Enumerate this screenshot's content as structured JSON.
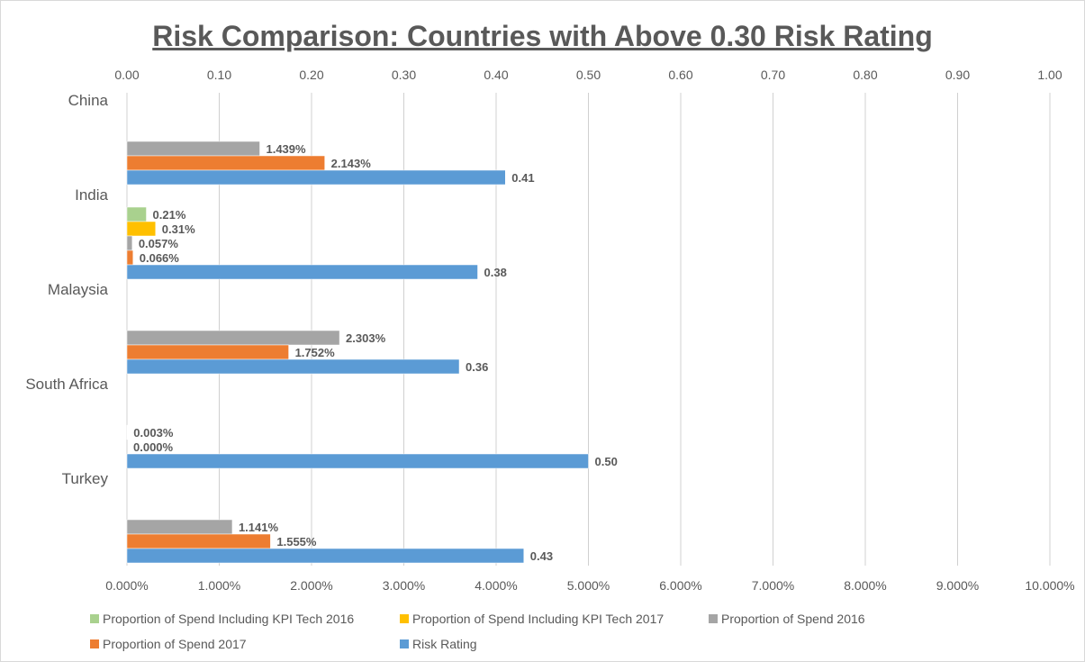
{
  "chart_data": {
    "type": "bar",
    "orientation": "horizontal",
    "title": "Risk Comparison: Countries with Above 0.30 Risk Rating",
    "categories": [
      "China",
      "India",
      "Malaysia",
      "South Africa",
      "Turkey"
    ],
    "primary_axis": {
      "position": "bottom",
      "range": [
        0,
        10
      ],
      "unit": "percent",
      "ticks": [
        "0.000%",
        "1.000%",
        "2.000%",
        "3.000%",
        "4.000%",
        "5.000%",
        "6.000%",
        "7.000%",
        "8.000%",
        "9.000%",
        "10.000%"
      ]
    },
    "secondary_axis": {
      "position": "top",
      "range": [
        0,
        1
      ],
      "ticks": [
        "0.00",
        "0.10",
        "0.20",
        "0.30",
        "0.40",
        "0.50",
        "0.60",
        "0.70",
        "0.80",
        "0.90",
        "1.00"
      ]
    },
    "grid": true,
    "legend_position": "bottom",
    "series": [
      {
        "name": "Proportion of Spend Including KPI Tech 2016",
        "axis": "primary",
        "color": "#a9d18e",
        "values": [
          null,
          0.21,
          null,
          null,
          null
        ],
        "labels": [
          "",
          "0.21%",
          "",
          "",
          ""
        ]
      },
      {
        "name": "Proportion of Spend Including KPI Tech 2017",
        "axis": "primary",
        "color": "#ffc000",
        "values": [
          null,
          0.31,
          null,
          null,
          null
        ],
        "labels": [
          "",
          "0.31%",
          "",
          "",
          ""
        ]
      },
      {
        "name": "Proportion of Spend 2016",
        "axis": "primary",
        "color": "#a5a5a5",
        "values": [
          1.439,
          0.057,
          2.303,
          0.003,
          1.141
        ],
        "labels": [
          "1.439%",
          "0.057%",
          "2.303%",
          "0.003%",
          "1.141%"
        ]
      },
      {
        "name": "Proportion of Spend 2017",
        "axis": "primary",
        "color": "#ed7d31",
        "values": [
          2.143,
          0.066,
          1.752,
          0.0,
          1.555
        ],
        "labels": [
          "2.143%",
          "0.066%",
          "1.752%",
          "0.000%",
          "1.555%"
        ]
      },
      {
        "name": "Risk Rating",
        "axis": "secondary",
        "color": "#5b9bd5",
        "values": [
          0.41,
          0.38,
          0.36,
          0.5,
          0.43
        ],
        "labels": [
          "0.41",
          "0.38",
          "0.36",
          "0.50",
          "0.43"
        ]
      }
    ]
  }
}
